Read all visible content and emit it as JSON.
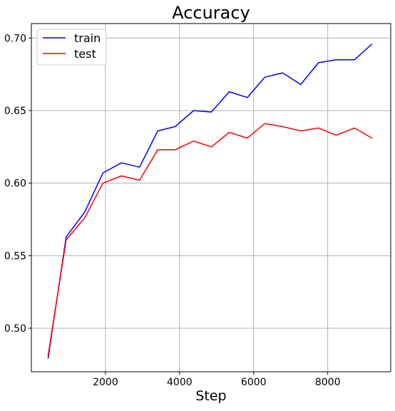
{
  "chart_data": {
    "type": "line",
    "title": "Accuracy",
    "xlabel": "Step",
    "ylabel": "",
    "xlim": [
      0,
      9700
    ],
    "ylim": [
      0.47,
      0.71
    ],
    "xticks": [
      2000,
      4000,
      6000,
      8000
    ],
    "xtick_labels": [
      "2000",
      "4000",
      "6000",
      "8000"
    ],
    "yticks": [
      0.5,
      0.55,
      0.6,
      0.65,
      0.7
    ],
    "ytick_labels": [
      "0.50",
      "0.55",
      "0.60",
      "0.65",
      "0.70"
    ],
    "grid": true,
    "legend_position": "top-left",
    "series": [
      {
        "name": "train",
        "color": "#0000ff",
        "x": [
          450,
          940,
          1440,
          1930,
          2430,
          2920,
          3410,
          3880,
          4380,
          4860,
          5340,
          5830,
          6300,
          6780,
          7270,
          7750,
          8230,
          8720,
          9200
        ],
        "y": [
          0.479,
          0.563,
          0.58,
          0.607,
          0.614,
          0.611,
          0.636,
          0.639,
          0.65,
          0.649,
          0.663,
          0.659,
          0.673,
          0.676,
          0.668,
          0.683,
          0.685,
          0.685,
          0.696
        ]
      },
      {
        "name": "test",
        "color": "#ff0000",
        "x": [
          450,
          940,
          1440,
          1930,
          2430,
          2920,
          3410,
          3880,
          4380,
          4860,
          5340,
          5830,
          6300,
          6780,
          7270,
          7750,
          8230,
          8720,
          9200
        ],
        "y": [
          0.481,
          0.561,
          0.576,
          0.6,
          0.605,
          0.602,
          0.623,
          0.623,
          0.629,
          0.625,
          0.635,
          0.631,
          0.641,
          0.639,
          0.636,
          0.638,
          0.633,
          0.638,
          0.631
        ]
      }
    ]
  }
}
